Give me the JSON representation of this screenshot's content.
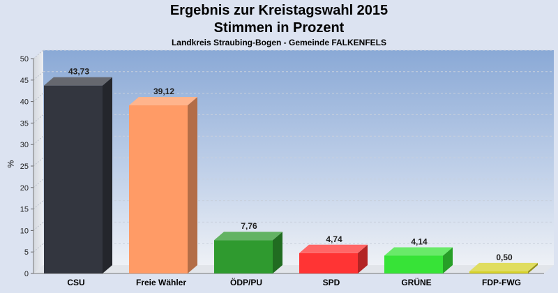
{
  "chart_data": {
    "type": "bar",
    "title": "Ergebnis zur Kreistagswahl 2015",
    "subtitle": "Stimmen in Prozent",
    "subsubtitle": "Landkreis Straubing-Bogen - Gemeinde FALKENFELS",
    "ylabel": "%",
    "ylim": [
      0,
      50
    ],
    "yticks": [
      0,
      5,
      10,
      15,
      20,
      25,
      30,
      35,
      40,
      45,
      50
    ],
    "grid": true,
    "categories": [
      "CSU",
      "Freie Wähler",
      "ÖDP/PU",
      "SPD",
      "GRÜNE",
      "FDP-FWG"
    ],
    "values": [
      43.73,
      39.12,
      7.76,
      4.74,
      4.14,
      0.5
    ],
    "value_labels": [
      "43,73",
      "39,12",
      "7,76",
      "4,74",
      "4,14",
      "0,50"
    ],
    "colors": [
      "#33363f",
      "#ff9b66",
      "#2f9a2f",
      "#ff3434",
      "#37e337",
      "#d6d12a"
    ]
  }
}
